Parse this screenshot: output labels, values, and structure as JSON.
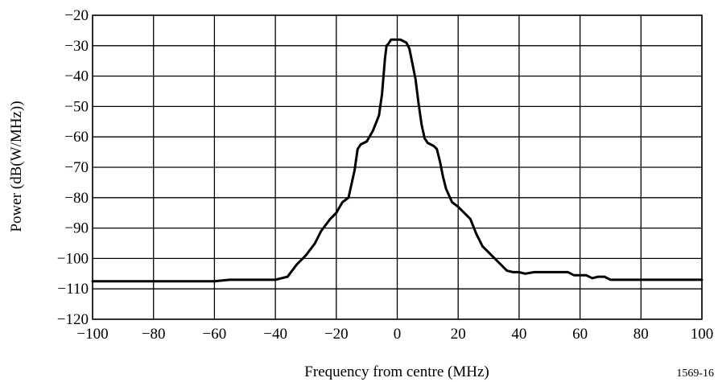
{
  "chart_data": {
    "type": "line",
    "title": "",
    "xlabel": "Frequency from centre (MHz)",
    "ylabel": "Power (dB(W/MHz))",
    "figure_id": "1569-16",
    "xlim": [
      -100,
      100
    ],
    "ylim": [
      -120,
      -20
    ],
    "grid": true,
    "legend": "none",
    "x_ticks": [
      -100,
      -80,
      -60,
      -40,
      -20,
      0,
      20,
      40,
      60,
      80,
      100
    ],
    "x_tick_labels": [
      "−100",
      "−80",
      "−60",
      "−40",
      "−20",
      "0",
      "20",
      "40",
      "60",
      "80",
      "100"
    ],
    "y_ticks": [
      -20,
      -30,
      -40,
      -50,
      -60,
      -70,
      -80,
      -90,
      -100,
      -110,
      -120
    ],
    "y_tick_labels": [
      "−20",
      "−30",
      "−40",
      "−50",
      "−60",
      "−70",
      "−80",
      "−90",
      "−100",
      "−110",
      "−120"
    ],
    "series": [
      {
        "color": "#000000",
        "x": [
          -100,
          -80,
          -60,
          -55,
          -40,
          -36,
          -33,
          -30,
          -27,
          -25,
          -22,
          -20,
          -18,
          -16,
          -14,
          -13,
          -12,
          -11,
          -10,
          -8,
          -6,
          -5,
          -4,
          -3.5,
          -3,
          -2,
          -1,
          0,
          1,
          2,
          3,
          4,
          5,
          6,
          7,
          8,
          9,
          10,
          11,
          12,
          13,
          14,
          15,
          16,
          18,
          20,
          22,
          24,
          26,
          28,
          30,
          32,
          34,
          36,
          38,
          40,
          42,
          45,
          50,
          56,
          58,
          60,
          62,
          64,
          66,
          68,
          70,
          80,
          100
        ],
        "y": [
          -107.5,
          -107.5,
          -107.5,
          -107,
          -107,
          -106,
          -102,
          -99,
          -95,
          -91,
          -87,
          -85,
          -81.5,
          -80,
          -71,
          -64,
          -62.5,
          -62,
          -61.5,
          -58,
          -53,
          -46,
          -34,
          -30,
          -29.5,
          -28,
          -28,
          -28,
          -28,
          -28.5,
          -29,
          -31,
          -36,
          -41,
          -49,
          -56,
          -60.5,
          -62,
          -62.5,
          -63,
          -64,
          -68,
          -73,
          -77,
          -81.5,
          -83,
          -85,
          -87,
          -92,
          -96,
          -98,
          -100,
          -102,
          -104,
          -104.5,
          -104.5,
          -105,
          -104.5,
          -104.5,
          -104.5,
          -105.5,
          -105.5,
          -105.5,
          -106.5,
          -106,
          -106,
          -107,
          -107,
          -107
        ]
      }
    ]
  }
}
